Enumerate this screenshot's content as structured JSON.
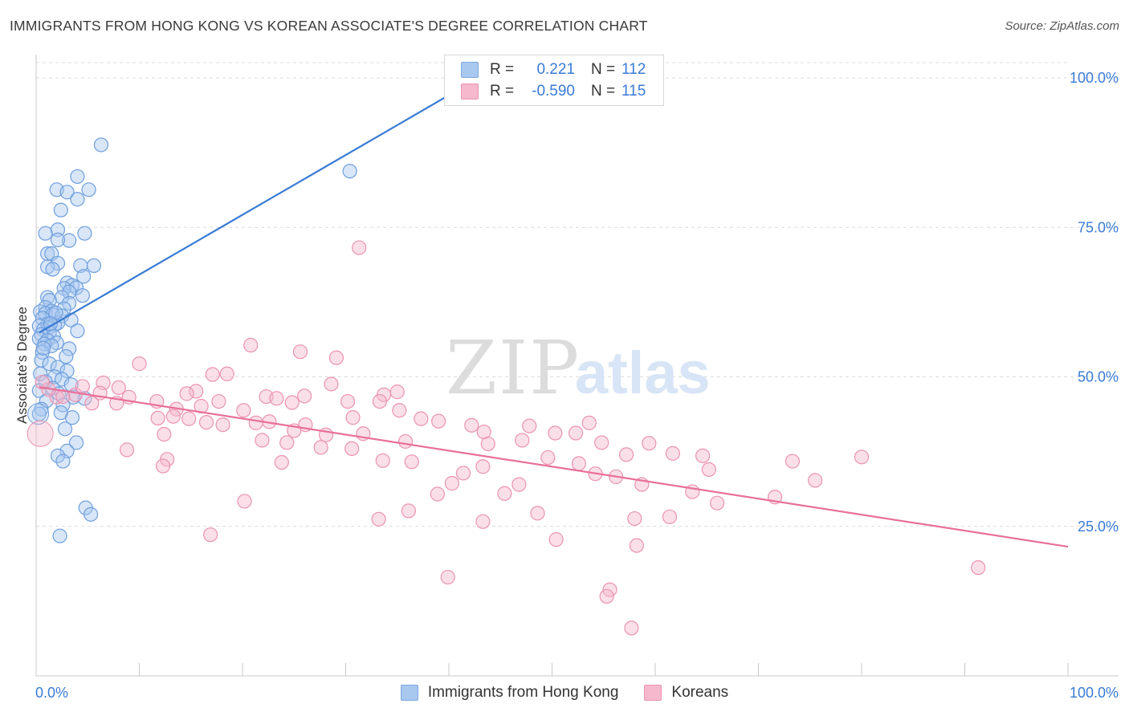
{
  "title": "IMMIGRANTS FROM HONG KONG VS KOREAN ASSOCIATE'S DEGREE CORRELATION CHART",
  "source": "Source: ZipAtlas.com",
  "watermark": {
    "zip": "ZIP",
    "atlas": "atlas"
  },
  "legend": [
    {
      "r_label": "R =",
      "r_value": "0.221",
      "n_label": "N =",
      "n_value": "112"
    },
    {
      "r_label": "R =",
      "r_value": "-0.590",
      "n_label": "N =",
      "n_value": "115"
    }
  ],
  "colors": {
    "blue": "#3a7bd5",
    "blue_fill": "#a9c8f0",
    "pink": "#e8709a",
    "pink_fill": "#f5b8cc",
    "axis_text": "#3a7bd5"
  },
  "chart_data": {
    "type": "scatter",
    "ylabel": "Associate's Degree",
    "xlim": [
      0,
      100
    ],
    "ylim": [
      0,
      100
    ],
    "x_tick_labels": [
      "0.0%",
      "100.0%"
    ],
    "y_tick_labels": [
      "100.0%",
      "75.0%",
      "50.0%",
      "25.0%"
    ],
    "y_ticks": [
      100,
      75,
      50,
      25
    ],
    "grid": true,
    "legend_position": "top-center",
    "series": [
      {
        "name": "Immigrants from Hong Kong",
        "color": "#3a7bd5",
        "trend": {
          "x": [
            0.3,
            40.5
          ],
          "y": [
            57.4,
            97.6
          ]
        },
        "points": [
          [
            6.3,
            88.8
          ],
          [
            30.4,
            84.4
          ],
          [
            4.0,
            83.5
          ],
          [
            2.0,
            81.3
          ],
          [
            5.1,
            81.3
          ],
          [
            3.0,
            80.9
          ],
          [
            4.0,
            79.7
          ],
          [
            2.4,
            77.9
          ],
          [
            0.9,
            74.0
          ],
          [
            2.1,
            74.6
          ],
          [
            4.7,
            74.0
          ],
          [
            3.2,
            72.8
          ],
          [
            2.1,
            72.9
          ],
          [
            1.1,
            70.6
          ],
          [
            1.5,
            70.6
          ],
          [
            2.1,
            69.0
          ],
          [
            4.3,
            68.6
          ],
          [
            5.6,
            68.6
          ],
          [
            1.1,
            68.4
          ],
          [
            1.6,
            68.0
          ],
          [
            4.6,
            66.8
          ],
          [
            3.0,
            65.7
          ],
          [
            3.5,
            65.3
          ],
          [
            2.7,
            64.8
          ],
          [
            3.9,
            64.9
          ],
          [
            3.2,
            64.2
          ],
          [
            4.5,
            63.6
          ],
          [
            1.1,
            63.3
          ],
          [
            2.5,
            63.3
          ],
          [
            1.3,
            62.8
          ],
          [
            3.2,
            62.3
          ],
          [
            0.9,
            61.6
          ],
          [
            2.7,
            61.4
          ],
          [
            1.5,
            61.0
          ],
          [
            0.4,
            60.9
          ],
          [
            0.9,
            60.6
          ],
          [
            1.6,
            60.4
          ],
          [
            2.5,
            60.2
          ],
          [
            0.6,
            59.8
          ],
          [
            3.4,
            59.5
          ],
          [
            2.1,
            59.0
          ],
          [
            1.1,
            58.8
          ],
          [
            1.8,
            58.7
          ],
          [
            0.3,
            58.5
          ],
          [
            1.2,
            58.2
          ],
          [
            0.7,
            57.9
          ],
          [
            4.0,
            57.7
          ],
          [
            1.3,
            57.4
          ],
          [
            0.5,
            57.1
          ],
          [
            1.7,
            56.8
          ],
          [
            0.3,
            56.4
          ],
          [
            1.1,
            56.1
          ],
          [
            2.0,
            55.7
          ],
          [
            0.8,
            55.5
          ],
          [
            1.5,
            55.2
          ],
          [
            3.2,
            54.7
          ],
          [
            0.6,
            54.1
          ],
          [
            2.9,
            53.4
          ],
          [
            0.5,
            52.8
          ],
          [
            1.3,
            52.2
          ],
          [
            2.1,
            51.6
          ],
          [
            3.0,
            51.0
          ],
          [
            0.4,
            50.5
          ],
          [
            1.8,
            50.0
          ],
          [
            2.5,
            49.6
          ],
          [
            0.9,
            49.2
          ],
          [
            3.4,
            48.7
          ],
          [
            1.6,
            48.1
          ],
          [
            0.3,
            47.7
          ],
          [
            2.2,
            47.2
          ],
          [
            4.7,
            46.4
          ],
          [
            1.0,
            46.0
          ],
          [
            2.6,
            45.3
          ],
          [
            0.5,
            44.6
          ],
          [
            2.4,
            44.0
          ],
          [
            3.5,
            43.2
          ],
          [
            0.3,
            43.8
          ],
          [
            2.8,
            41.3
          ],
          [
            3.9,
            39.0
          ],
          [
            3.0,
            37.6
          ],
          [
            2.1,
            36.8
          ],
          [
            2.6,
            35.9
          ],
          [
            4.8,
            28.1
          ],
          [
            5.3,
            27.0
          ],
          [
            2.3,
            23.4
          ],
          [
            1.9,
            60.7
          ],
          [
            0.7,
            54.8
          ],
          [
            1.4,
            58.9
          ],
          [
            3.6,
            46.6
          ]
        ]
      },
      {
        "name": "Koreans",
        "color": "#e8709a",
        "trend": {
          "x": [
            0.3,
            100.0
          ],
          "y": [
            48.3,
            21.6
          ]
        },
        "points": [
          [
            31.3,
            71.6
          ],
          [
            20.8,
            55.3
          ],
          [
            25.6,
            54.2
          ],
          [
            29.1,
            53.2
          ],
          [
            10.0,
            52.2
          ],
          [
            17.1,
            50.4
          ],
          [
            18.5,
            50.5
          ],
          [
            28.6,
            48.8
          ],
          [
            6.5,
            49.0
          ],
          [
            8.0,
            48.2
          ],
          [
            15.5,
            47.6
          ],
          [
            14.6,
            47.2
          ],
          [
            33.7,
            47.0
          ],
          [
            35.0,
            47.5
          ],
          [
            9.0,
            46.6
          ],
          [
            22.3,
            46.7
          ],
          [
            23.3,
            46.4
          ],
          [
            26.0,
            46.8
          ],
          [
            33.3,
            45.9
          ],
          [
            30.2,
            45.9
          ],
          [
            24.8,
            45.7
          ],
          [
            17.7,
            45.9
          ],
          [
            5.4,
            45.6
          ],
          [
            7.8,
            45.6
          ],
          [
            11.7,
            45.9
          ],
          [
            3.8,
            47.0
          ],
          [
            2.0,
            46.6
          ],
          [
            2.6,
            46.7
          ],
          [
            1.2,
            47.9
          ],
          [
            0.6,
            49.1
          ],
          [
            4.5,
            48.4
          ],
          [
            6.2,
            47.3
          ],
          [
            13.6,
            44.6
          ],
          [
            16.0,
            45.1
          ],
          [
            35.2,
            44.4
          ],
          [
            20.1,
            44.4
          ],
          [
            11.8,
            43.1
          ],
          [
            13.3,
            43.4
          ],
          [
            14.8,
            43.0
          ],
          [
            16.5,
            42.4
          ],
          [
            18.1,
            42.0
          ],
          [
            21.3,
            42.3
          ],
          [
            22.6,
            42.5
          ],
          [
            26.1,
            42.0
          ],
          [
            30.7,
            43.2
          ],
          [
            37.3,
            43.0
          ],
          [
            39.0,
            42.6
          ],
          [
            42.2,
            41.9
          ],
          [
            47.8,
            41.8
          ],
          [
            53.6,
            42.3
          ],
          [
            50.3,
            40.6
          ],
          [
            52.3,
            40.6
          ],
          [
            12.4,
            40.4
          ],
          [
            21.9,
            39.4
          ],
          [
            25.0,
            41.0
          ],
          [
            28.1,
            40.3
          ],
          [
            31.7,
            40.5
          ],
          [
            43.4,
            40.8
          ],
          [
            8.8,
            37.8
          ],
          [
            12.7,
            36.2
          ],
          [
            24.3,
            39.0
          ],
          [
            27.6,
            38.2
          ],
          [
            30.6,
            38.0
          ],
          [
            35.8,
            39.2
          ],
          [
            43.8,
            38.8
          ],
          [
            47.1,
            39.4
          ],
          [
            54.8,
            39.0
          ],
          [
            57.2,
            37.0
          ],
          [
            59.4,
            38.9
          ],
          [
            61.7,
            37.2
          ],
          [
            12.3,
            35.1
          ],
          [
            23.8,
            35.7
          ],
          [
            33.6,
            36.0
          ],
          [
            36.4,
            35.8
          ],
          [
            43.3,
            35.0
          ],
          [
            49.6,
            36.5
          ],
          [
            52.6,
            35.5
          ],
          [
            41.4,
            33.9
          ],
          [
            54.2,
            33.8
          ],
          [
            58.7,
            32.0
          ],
          [
            63.6,
            30.8
          ],
          [
            56.2,
            33.3
          ],
          [
            46.8,
            32.0
          ],
          [
            45.4,
            30.5
          ],
          [
            40.3,
            32.2
          ],
          [
            38.9,
            30.4
          ],
          [
            20.2,
            29.2
          ],
          [
            36.1,
            27.6
          ],
          [
            48.6,
            27.2
          ],
          [
            43.3,
            25.8
          ],
          [
            33.2,
            26.2
          ],
          [
            58.0,
            26.3
          ],
          [
            61.4,
            26.6
          ],
          [
            66.0,
            28.9
          ],
          [
            71.6,
            29.9
          ],
          [
            73.3,
            35.9
          ],
          [
            75.5,
            32.7
          ],
          [
            80.0,
            36.6
          ],
          [
            16.9,
            23.6
          ],
          [
            50.4,
            22.8
          ],
          [
            58.2,
            21.8
          ],
          [
            39.9,
            16.5
          ],
          [
            55.6,
            14.4
          ],
          [
            55.3,
            13.3
          ],
          [
            57.7,
            8.0
          ],
          [
            91.3,
            18.1
          ],
          [
            64.6,
            36.8
          ],
          [
            65.2,
            34.5
          ]
        ]
      }
    ]
  },
  "bottom_legend": [
    {
      "label": "Immigrants from Hong Kong"
    },
    {
      "label": "Koreans"
    }
  ]
}
